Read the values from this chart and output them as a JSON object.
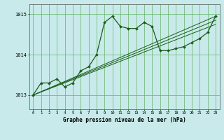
{
  "title": "Graphe pression niveau de la mer (hPa)",
  "bg_color": "#c8eaea",
  "grid_color": "#66b366",
  "line_color": "#1a5c1a",
  "x_values": [
    0,
    1,
    2,
    3,
    4,
    5,
    6,
    7,
    8,
    9,
    10,
    11,
    12,
    13,
    14,
    15,
    16,
    17,
    18,
    19,
    20,
    21,
    22,
    23
  ],
  "line1": [
    1013.0,
    1013.3,
    1013.3,
    1013.4,
    1013.2,
    1013.3,
    1013.6,
    1013.7,
    1014.0,
    1014.8,
    1014.95,
    1014.7,
    1014.65,
    1014.65,
    1014.8,
    1014.7,
    1014.1,
    1014.1,
    1014.15,
    1014.2,
    1014.3,
    1014.4,
    1014.55,
    1014.95
  ],
  "trend_lines": [
    [
      [
        0,
        1013.0
      ],
      [
        23,
        1014.95
      ]
    ],
    [
      [
        0,
        1013.0
      ],
      [
        23,
        1014.85
      ]
    ],
    [
      [
        0,
        1013.0
      ],
      [
        23,
        1014.75
      ]
    ]
  ],
  "ylim": [
    1012.65,
    1015.25
  ],
  "yticks": [
    1013,
    1014,
    1015
  ],
  "xticks": [
    0,
    1,
    2,
    3,
    4,
    5,
    6,
    7,
    8,
    9,
    10,
    11,
    12,
    13,
    14,
    15,
    16,
    17,
    18,
    19,
    20,
    21,
    22,
    23
  ],
  "xlim": [
    -0.5,
    23.5
  ]
}
